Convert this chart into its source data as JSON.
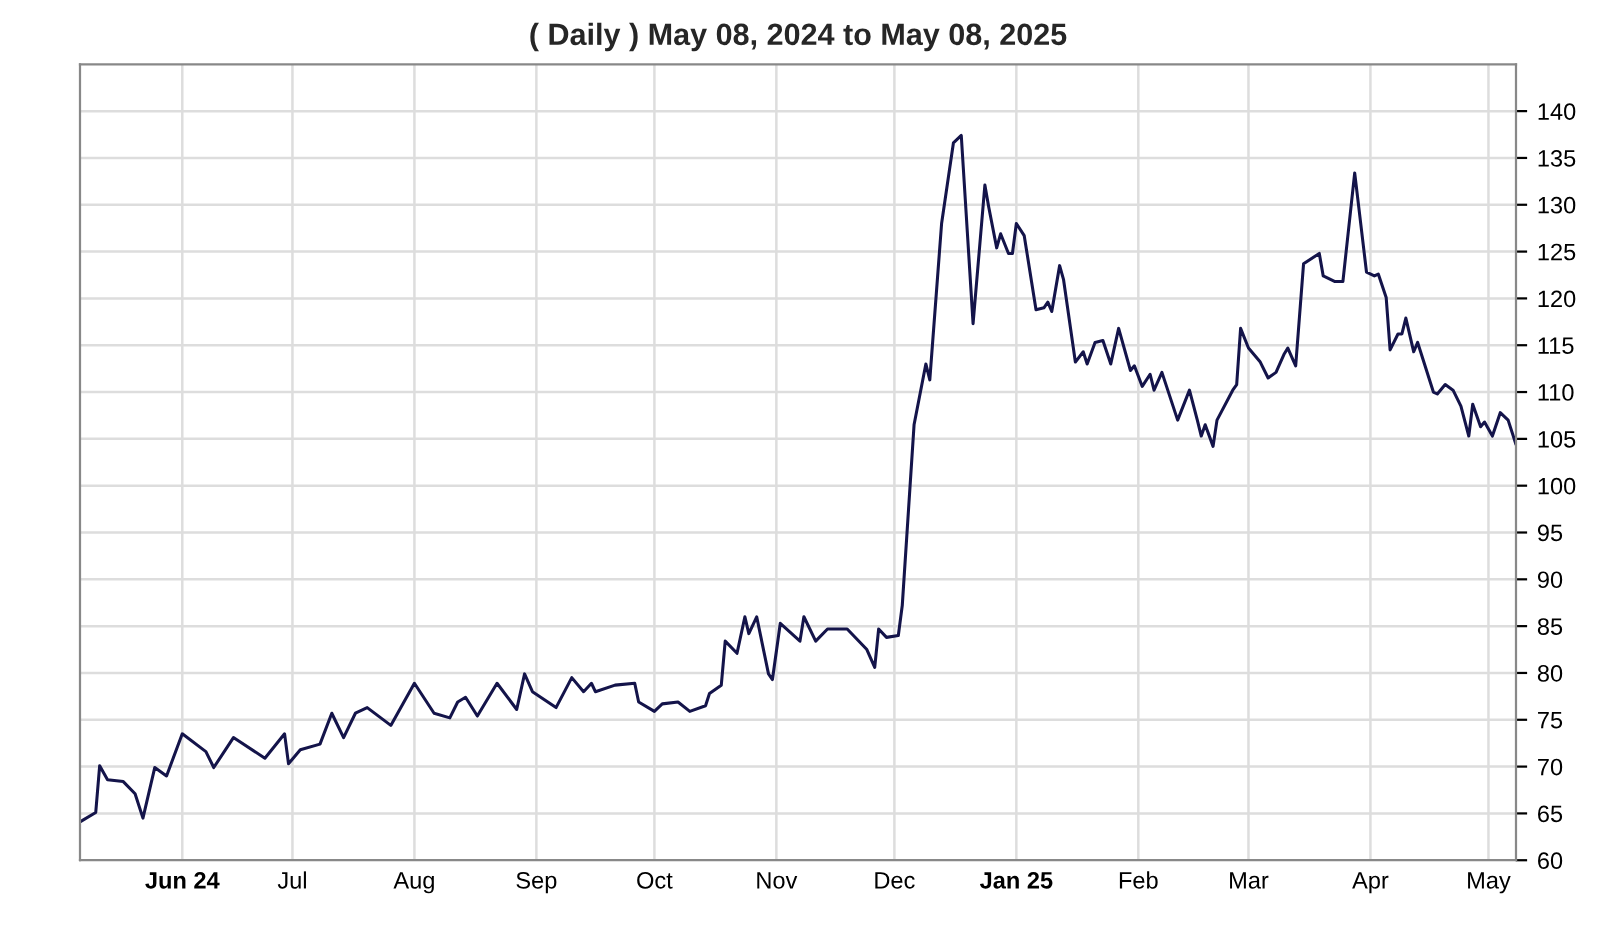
{
  "chart_data": {
    "type": "line",
    "title": "( Daily ) May 08, 2024 to May 08, 2025",
    "x": [
      "2024-05-08",
      "2024-05-12",
      "2024-05-13",
      "2024-05-15",
      "2024-05-19",
      "2024-05-22",
      "2024-05-24",
      "2024-05-27",
      "2024-05-30",
      "2024-06-03",
      "2024-06-09",
      "2024-06-11",
      "2024-06-16",
      "2024-06-24",
      "2024-06-29",
      "2024-06-30",
      "2024-07-03",
      "2024-07-08",
      "2024-07-11",
      "2024-07-14",
      "2024-07-17",
      "2024-07-20",
      "2024-07-26",
      "2024-08-01",
      "2024-08-06",
      "2024-08-10",
      "2024-08-12",
      "2024-08-14",
      "2024-08-17",
      "2024-08-22",
      "2024-08-27",
      "2024-08-29",
      "2024-08-31",
      "2024-09-06",
      "2024-09-10",
      "2024-09-13",
      "2024-09-15",
      "2024-09-16",
      "2024-09-21",
      "2024-09-26",
      "2024-09-27",
      "2024-10-01",
      "2024-10-03",
      "2024-10-07",
      "2024-10-10",
      "2024-10-14",
      "2024-10-15",
      "2024-10-18",
      "2024-10-19",
      "2024-10-22",
      "2024-10-24",
      "2024-10-25",
      "2024-10-27",
      "2024-10-30",
      "2024-10-31",
      "2024-11-02",
      "2024-11-07",
      "2024-11-08",
      "2024-11-11",
      "2024-11-14",
      "2024-11-19",
      "2024-11-24",
      "2024-11-26",
      "2024-11-27",
      "2024-11-29",
      "2024-12-02",
      "2024-12-03",
      "2024-12-06",
      "2024-12-09",
      "2024-12-10",
      "2024-12-13",
      "2024-12-16",
      "2024-12-18",
      "2024-12-21",
      "2024-12-24",
      "2024-12-25",
      "2024-12-27",
      "2024-12-28",
      "2024-12-30",
      "2024-12-31",
      "2025-01-01",
      "2025-01-03",
      "2025-01-06",
      "2025-01-08",
      "2025-01-09",
      "2025-01-10",
      "2025-01-12",
      "2025-01-13",
      "2025-01-16",
      "2025-01-18",
      "2025-01-19",
      "2025-01-21",
      "2025-01-23",
      "2025-01-25",
      "2025-01-27",
      "2025-01-30",
      "2025-01-31",
      "2025-02-02",
      "2025-02-04",
      "2025-02-05",
      "2025-02-07",
      "2025-02-11",
      "2025-02-14",
      "2025-02-16",
      "2025-02-17",
      "2025-02-18",
      "2025-02-20",
      "2025-02-21",
      "2025-02-25",
      "2025-02-26",
      "2025-02-27",
      "2025-03-01",
      "2025-03-04",
      "2025-03-06",
      "2025-03-08",
      "2025-03-10",
      "2025-03-11",
      "2025-03-13",
      "2025-03-15",
      "2025-03-19",
      "2025-03-20",
      "2025-03-23",
      "2025-03-25",
      "2025-03-28",
      "2025-03-31",
      "2025-04-02",
      "2025-04-03",
      "2025-04-05",
      "2025-04-06",
      "2025-04-08",
      "2025-04-09",
      "2025-04-10",
      "2025-04-12",
      "2025-04-13",
      "2025-04-17",
      "2025-04-18",
      "2025-04-20",
      "2025-04-22",
      "2025-04-24",
      "2025-04-26",
      "2025-04-27",
      "2025-04-29",
      "2025-04-30",
      "2025-05-02",
      "2025-05-04",
      "2025-05-06",
      "2025-05-08"
    ],
    "series": [
      {
        "color": "#14144a",
        "values": [
          64.1,
          65.1,
          70.1,
          68.6,
          68.4,
          67.1,
          64.5,
          69.9,
          69.0,
          73.5,
          71.6,
          69.9,
          73.1,
          70.9,
          73.5,
          70.3,
          71.8,
          72.4,
          75.7,
          73.1,
          75.7,
          76.3,
          74.4,
          78.9,
          75.7,
          75.2,
          76.9,
          77.4,
          75.4,
          78.9,
          76.1,
          79.9,
          78.0,
          76.3,
          79.5,
          78.0,
          78.9,
          78.0,
          78.7,
          78.9,
          76.9,
          75.9,
          76.7,
          76.9,
          75.9,
          76.5,
          77.8,
          78.7,
          83.4,
          82.1,
          86.0,
          84.2,
          86.0,
          79.9,
          79.3,
          85.3,
          83.4,
          86.0,
          83.4,
          84.7,
          84.7,
          82.5,
          80.6,
          84.7,
          83.8,
          84.0,
          87.2,
          106.5,
          113.0,
          111.3,
          128.0,
          136.6,
          137.4,
          117.3,
          132.1,
          129.7,
          125.4,
          126.9,
          124.8,
          124.8,
          128.0,
          126.7,
          118.8,
          119.0,
          119.6,
          118.6,
          123.5,
          122.0,
          113.2,
          114.3,
          113.0,
          115.3,
          115.5,
          113.0,
          116.8,
          112.3,
          112.8,
          110.6,
          111.9,
          110.2,
          112.1,
          107.0,
          110.2,
          107.0,
          105.3,
          106.5,
          104.2,
          107.0,
          110.2,
          110.8,
          116.8,
          114.7,
          113.2,
          111.5,
          112.1,
          114.0,
          114.7,
          112.8,
          123.7,
          124.8,
          122.4,
          121.8,
          121.8,
          133.4,
          122.8,
          122.4,
          122.6,
          120.1,
          114.5,
          116.2,
          116.2,
          117.9,
          114.3,
          115.3,
          110.0,
          109.8,
          110.8,
          110.2,
          108.5,
          105.3,
          108.7,
          106.3,
          106.8,
          105.3,
          107.8,
          107.0,
          104.4
        ]
      }
    ],
    "xlim": [
      "2024-05-08",
      "2025-05-08"
    ],
    "xticks": [
      {
        "value": "2024-06-03",
        "label": "Jun 24"
      },
      {
        "value": "2024-07-01",
        "label": "Jul"
      },
      {
        "value": "2024-08-01",
        "label": "Aug"
      },
      {
        "value": "2024-09-01",
        "label": "Sep"
      },
      {
        "value": "2024-10-01",
        "label": "Oct"
      },
      {
        "value": "2024-11-01",
        "label": "Nov"
      },
      {
        "value": "2024-12-01",
        "label": "Dec"
      },
      {
        "value": "2025-01-01",
        "label": "Jan 25"
      },
      {
        "value": "2025-02-01",
        "label": "Feb"
      },
      {
        "value": "2025-03-01",
        "label": "Mar"
      },
      {
        "value": "2025-04-01",
        "label": "Apr"
      },
      {
        "value": "2025-05-01",
        "label": "May"
      }
    ],
    "ylim": [
      60,
      145
    ],
    "yticks": [
      60,
      65,
      70,
      75,
      80,
      85,
      90,
      95,
      100,
      105,
      110,
      115,
      120,
      125,
      130,
      135,
      140
    ],
    "grid": true
  }
}
